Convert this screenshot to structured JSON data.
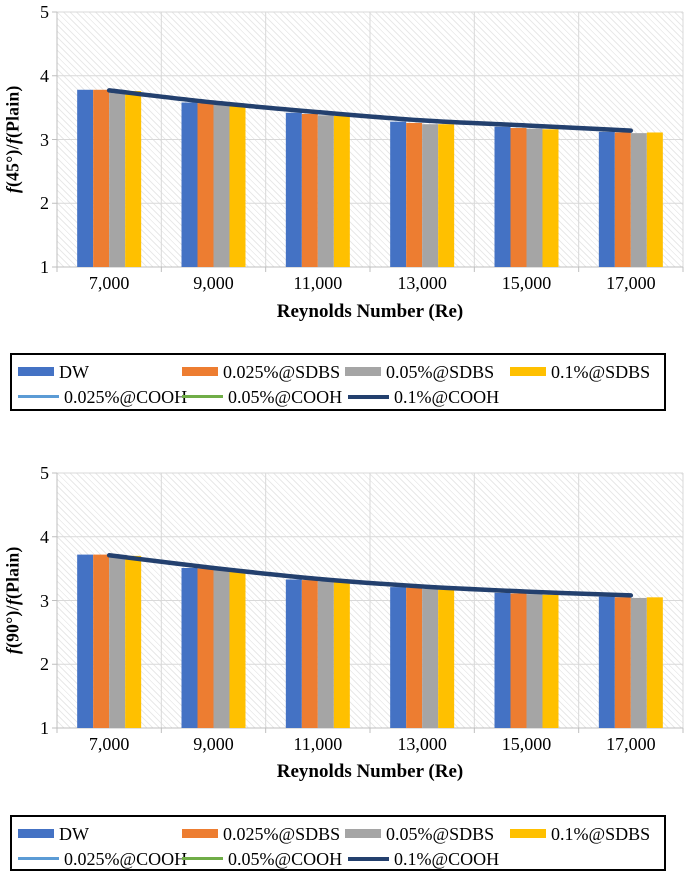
{
  "colors": {
    "bar_blue": "#4472C4",
    "bar_orange": "#ED7D31",
    "bar_gray": "#A5A5A5",
    "bar_yellow": "#FFC000",
    "line_lightblue": "#5B9BD5",
    "line_green": "#70AD47",
    "line_navy": "#23406E",
    "gridline": "#D9D9D9",
    "axis": "#BFBFBF",
    "hatch": "#E9E9E9",
    "legend_border": "#000000"
  },
  "legend": {
    "rows": [
      [
        {
          "label": "DW",
          "color": "#4472C4",
          "swatch": "bar"
        },
        {
          "label": "0.025%@SDBS",
          "color": "#ED7D31",
          "swatch": "bar"
        },
        {
          "label": "0.05%@SDBS",
          "color": "#A5A5A5",
          "swatch": "bar"
        },
        {
          "label": "0.1%@SDBS",
          "color": "#FFC000",
          "swatch": "bar"
        }
      ],
      [
        {
          "label": "0.025%@COOH",
          "color": "#5B9BD5",
          "swatch": "line"
        },
        {
          "label": "0.05%@COOH",
          "color": "#70AD47",
          "swatch": "line"
        },
        {
          "label": "0.1%@COOH",
          "color": "#23406E",
          "swatch": "line"
        }
      ]
    ]
  },
  "chart_data": [
    {
      "type": "bar",
      "title": "",
      "xlabel": "Reynolds Number (Re)",
      "ylabel": "f(45°)/f(Plain)",
      "ylabel_segments": [
        {
          "text": "f",
          "italic": true
        },
        {
          "text": "(45°)/",
          "italic": false
        },
        {
          "text": "f",
          "italic": true
        },
        {
          "text": "(Plain)",
          "italic": false
        }
      ],
      "categories": [
        "7,000",
        "9,000",
        "11,000",
        "13,000",
        "15,000",
        "17,000"
      ],
      "ylim": [
        1,
        5
      ],
      "yticks": [
        1,
        2,
        3,
        4,
        5
      ],
      "grid": true,
      "plot_background": "light-diagonal-hatch",
      "legend_position": "below-in-bordered-box",
      "series": [
        {
          "name": "DW",
          "render": "bar",
          "color": "#4472C4",
          "values": [
            3.78,
            3.58,
            3.42,
            3.28,
            3.2,
            3.12
          ]
        },
        {
          "name": "0.025%@SDBS",
          "render": "bar",
          "color": "#ED7D31",
          "values": [
            3.78,
            3.57,
            3.4,
            3.26,
            3.18,
            3.11
          ]
        },
        {
          "name": "0.05%@SDBS",
          "render": "bar",
          "color": "#A5A5A5",
          "values": [
            3.77,
            3.55,
            3.38,
            3.24,
            3.17,
            3.1
          ]
        },
        {
          "name": "0.1%@SDBS",
          "render": "bar",
          "color": "#FFC000",
          "values": [
            3.76,
            3.56,
            3.37,
            3.24,
            3.16,
            3.11
          ]
        },
        {
          "name": "0.1%@COOH",
          "render": "line",
          "color": "#23406E",
          "values": [
            3.77,
            3.58,
            3.43,
            3.3,
            3.22,
            3.14
          ]
        }
      ]
    },
    {
      "type": "bar",
      "title": "",
      "xlabel": "Reynolds Number (Re)",
      "ylabel": "f(90°)/f(Plain)",
      "ylabel_segments": [
        {
          "text": "f",
          "italic": true
        },
        {
          "text": "(90°)/",
          "italic": false
        },
        {
          "text": "f",
          "italic": true
        },
        {
          "text": "(Plain)",
          "italic": false
        }
      ],
      "categories": [
        "7,000",
        "9,000",
        "11,000",
        "13,000",
        "15,000",
        "17,000"
      ],
      "ylim": [
        1,
        5
      ],
      "yticks": [
        1,
        2,
        3,
        4,
        5
      ],
      "grid": true,
      "plot_background": "light-diagonal-hatch",
      "legend_position": "below-in-bordered-box",
      "series": [
        {
          "name": "DW",
          "render": "bar",
          "color": "#4472C4",
          "values": [
            3.72,
            3.51,
            3.33,
            3.21,
            3.12,
            3.06
          ]
        },
        {
          "name": "0.025%@SDBS",
          "render": "bar",
          "color": "#ED7D31",
          "values": [
            3.72,
            3.5,
            3.32,
            3.2,
            3.11,
            3.05
          ]
        },
        {
          "name": "0.05%@SDBS",
          "render": "bar",
          "color": "#A5A5A5",
          "values": [
            3.71,
            3.48,
            3.3,
            3.18,
            3.1,
            3.04
          ]
        },
        {
          "name": "0.1%@SDBS",
          "render": "bar",
          "color": "#FFC000",
          "values": [
            3.7,
            3.49,
            3.29,
            3.17,
            3.09,
            3.05
          ]
        },
        {
          "name": "0.1%@COOH",
          "render": "line",
          "color": "#23406E",
          "values": [
            3.71,
            3.51,
            3.34,
            3.22,
            3.14,
            3.08
          ]
        }
      ]
    }
  ]
}
